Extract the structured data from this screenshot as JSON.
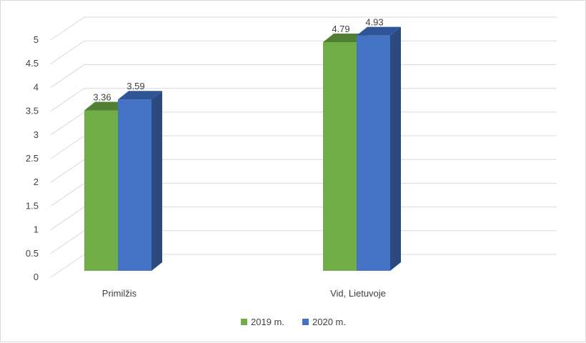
{
  "chart_data": {
    "type": "bar",
    "style": "3d-clustered-column",
    "categories": [
      "Primilžis",
      "Vid, Lietuvoje"
    ],
    "series": [
      {
        "name": "2019 m.",
        "values": [
          3.36,
          4.79
        ],
        "color": "#70ad47",
        "top_color": "#507e32",
        "side_color": "#4e7a33"
      },
      {
        "name": "2020 m.",
        "values": [
          3.59,
          4.93
        ],
        "color": "#4472c4",
        "top_color": "#2f5597",
        "side_color": "#2b4a80"
      }
    ],
    "y_ticks": [
      "0",
      "0.5",
      "1",
      "1.5",
      "2",
      "2.5",
      "3",
      "3.5",
      "4",
      "4.5",
      "5"
    ],
    "ylim": [
      0,
      5
    ],
    "grid": true,
    "legend_position": "bottom",
    "title": "",
    "xlabel": "",
    "ylabel": ""
  }
}
